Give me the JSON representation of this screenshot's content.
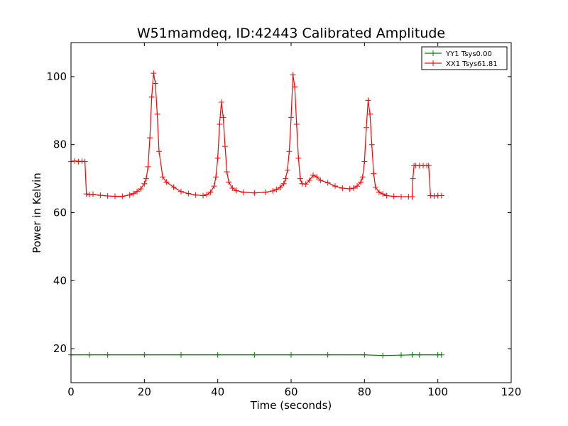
{
  "chart_data": {
    "type": "line",
    "title": "W51mamdeq, ID:42443 Calibrated Amplitude",
    "xlabel": "Time (seconds)",
    "ylabel": "Power in Kelvin",
    "xlim": [
      0,
      120
    ],
    "ylim": [
      10,
      110
    ],
    "xticks": [
      0,
      20,
      40,
      60,
      80,
      100,
      120
    ],
    "yticks": [
      20,
      40,
      60,
      80,
      100
    ],
    "grid": false,
    "legend_position": "top-right",
    "series": [
      {
        "name": "YY1 Tsys0.00",
        "color": "#008000",
        "marker": "+",
        "x": [
          0,
          5,
          10,
          20,
          30,
          40,
          50,
          60,
          70,
          80,
          85,
          90,
          93,
          95,
          100,
          101
        ],
        "y": [
          18.2,
          18.2,
          18.2,
          18.2,
          18.2,
          18.2,
          18.2,
          18.2,
          18.2,
          18.2,
          18.0,
          18.1,
          18.2,
          18.2,
          18.2,
          18.2
        ]
      },
      {
        "name": "XX1 Tsys61.81",
        "color": "#ff0000",
        "marker": "+",
        "x": [
          0,
          1,
          2,
          3,
          3.8,
          4.2,
          5,
          6,
          8,
          10,
          12,
          14,
          16,
          17,
          18,
          19,
          20,
          20.5,
          21,
          21.5,
          22,
          22.5,
          23,
          23.5,
          24,
          25,
          26,
          28,
          30,
          32,
          34,
          36,
          37,
          38,
          39,
          39.5,
          40,
          40.5,
          41,
          41.5,
          42,
          42.5,
          43,
          44,
          45,
          47,
          50,
          53,
          55,
          56,
          57,
          58,
          58.5,
          59,
          59.5,
          60,
          60.5,
          61,
          61.5,
          62,
          62.5,
          63,
          64,
          65,
          66,
          67,
          68,
          70,
          72,
          74,
          76,
          77,
          78,
          79,
          79.5,
          80,
          80.5,
          81,
          81.5,
          82,
          82.5,
          83,
          84,
          85,
          86,
          88,
          90,
          92,
          93,
          93.2,
          93.5,
          94,
          95,
          96,
          97,
          97.5,
          98,
          99,
          100,
          101
        ],
        "y": [
          75,
          75.2,
          75,
          75.1,
          75,
          65.5,
          65.3,
          65.4,
          65.1,
          64.9,
          64.8,
          64.8,
          65.2,
          65.6,
          66.2,
          67.0,
          68.5,
          70.0,
          73.5,
          82.0,
          94.0,
          101.0,
          98.0,
          89.0,
          78.0,
          70.5,
          69.0,
          67.5,
          66.2,
          65.6,
          65.2,
          65.0,
          65.3,
          66.0,
          67.8,
          70.5,
          76.0,
          86.0,
          92.5,
          88.0,
          79.5,
          72.0,
          69.0,
          67.2,
          66.5,
          66.0,
          65.8,
          66.0,
          66.4,
          66.8,
          67.4,
          68.5,
          70.0,
          72.5,
          78.0,
          88.0,
          100.5,
          97.0,
          86.0,
          76.0,
          70.0,
          68.5,
          68.4,
          69.5,
          71.0,
          70.5,
          69.5,
          68.8,
          67.8,
          67.2,
          67.0,
          67.2,
          67.8,
          69.0,
          70.5,
          75.0,
          85.0,
          93.0,
          89.0,
          80.0,
          71.5,
          67.5,
          66.0,
          65.5,
          65.0,
          64.8,
          64.7,
          64.7,
          64.7,
          70.0,
          73.8,
          73.8,
          73.8,
          73.8,
          73.8,
          73.8,
          65.0,
          64.9,
          65.0,
          65.0
        ]
      }
    ]
  }
}
